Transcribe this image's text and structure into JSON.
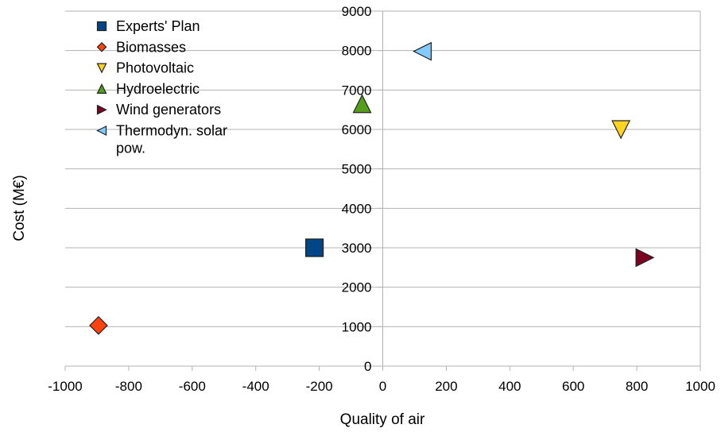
{
  "chart_data": {
    "type": "scatter",
    "title": "",
    "xlabel": "Quality of air",
    "ylabel": "Cost (M€)",
    "xlim": [
      -1000,
      1000
    ],
    "ylim": [
      0,
      9000
    ],
    "xticks": [
      -1000,
      -800,
      -600,
      -400,
      -200,
      0,
      200,
      400,
      600,
      800,
      1000
    ],
    "yticks": [
      0,
      1000,
      2000,
      3000,
      4000,
      5000,
      6000,
      7000,
      8000,
      9000
    ],
    "grid": "horizontal",
    "legend_position": "top-left",
    "series": [
      {
        "name": "Experts' Plan",
        "marker": "square",
        "color": "#004586",
        "x": -215,
        "y": 3000
      },
      {
        "name": "Biomasses",
        "marker": "diamond",
        "color": "#ff420e",
        "x": -895,
        "y": 1030
      },
      {
        "name": "Photovoltaic",
        "marker": "triangle-down",
        "color": "#ffd320",
        "x": 750,
        "y": 6000
      },
      {
        "name": "Hydroelectric",
        "marker": "triangle-up",
        "color": "#579d1c",
        "x": -65,
        "y": 6650
      },
      {
        "name": "Wind generators",
        "marker": "triangle-right",
        "color": "#7e0021",
        "x": 825,
        "y": 2750
      },
      {
        "name": "Thermodyn. solar pow.",
        "marker": "triangle-left",
        "color": "#83caff",
        "x": 125,
        "y": 7980
      }
    ]
  }
}
